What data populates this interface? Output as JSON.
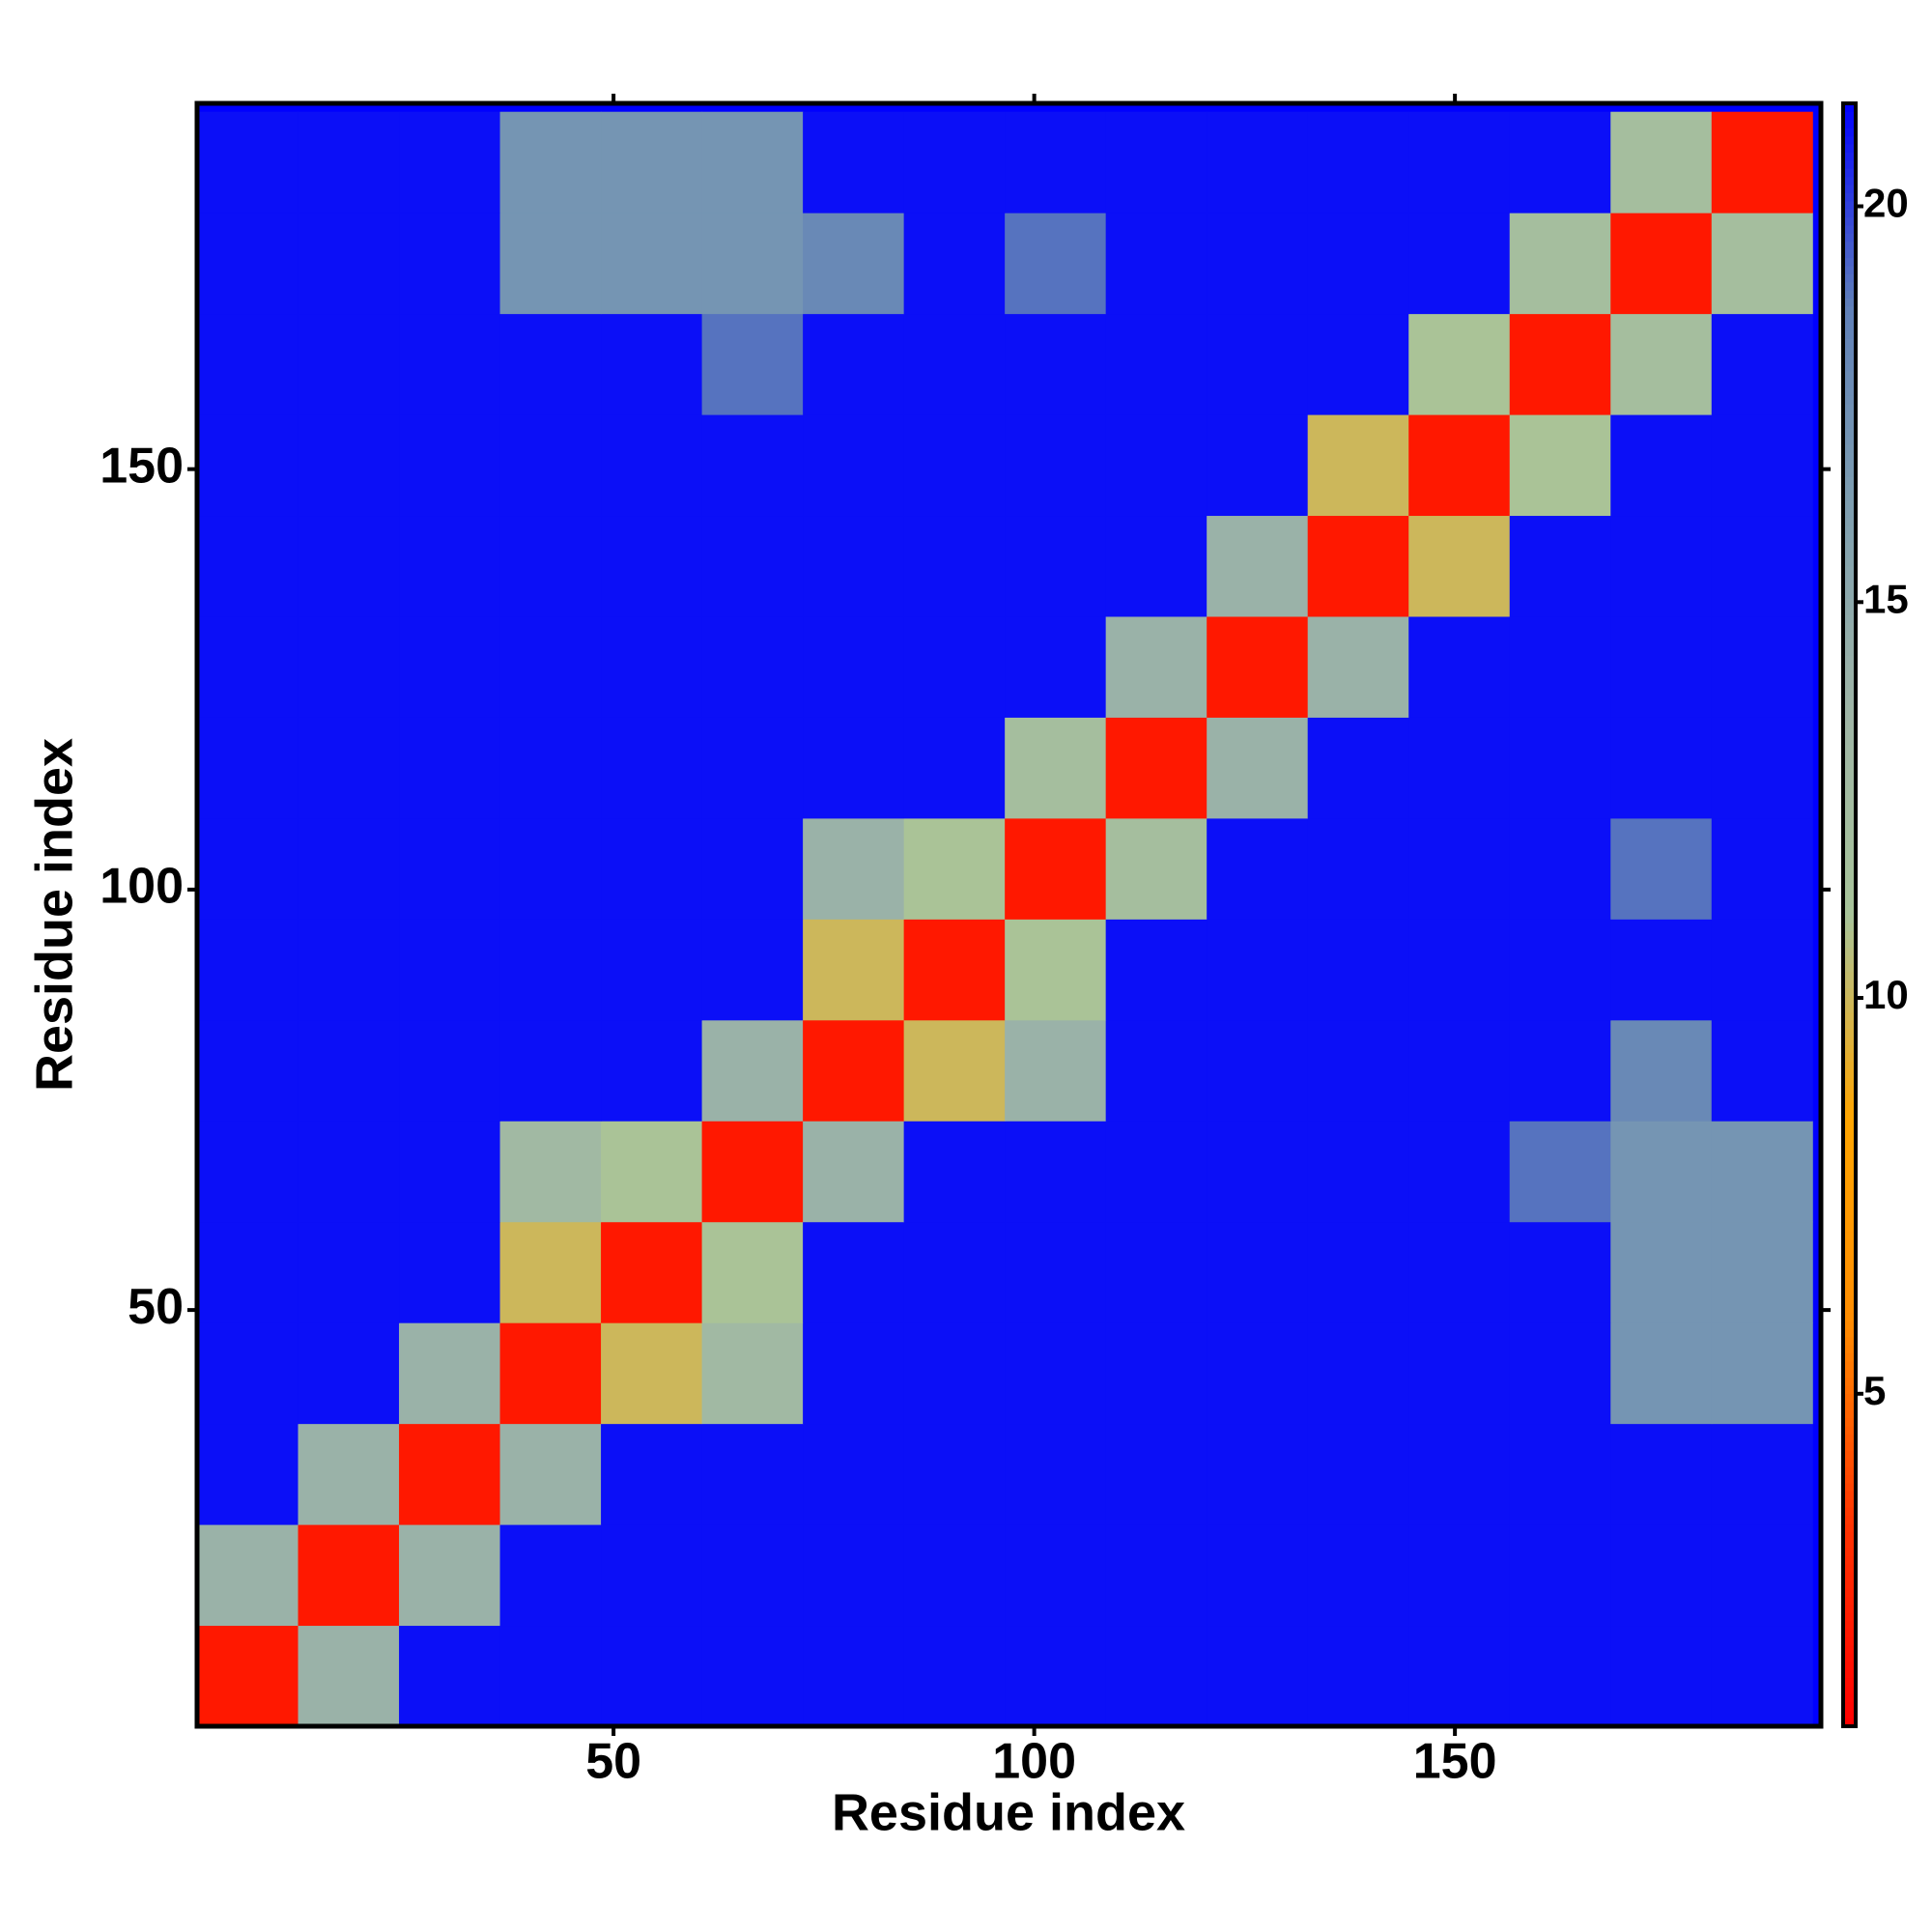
{
  "chart_data": {
    "type": "heatmap",
    "xlabel": "Residue index",
    "ylabel": "Residue index",
    "xbins": [
      0.5,
      12.5,
      24.5,
      36.5,
      48.5,
      60.5,
      72.5,
      84.5,
      96.5,
      108.5,
      120.5,
      132.5,
      144.5,
      156.5,
      168.5,
      180.5,
      192.5
    ],
    "ybins": [
      0.5,
      12.5,
      24.5,
      36.5,
      48.5,
      60.5,
      72.5,
      84.5,
      96.5,
      108.5,
      120.5,
      132.5,
      144.5,
      156.5,
      168.5,
      180.5,
      192.5
    ],
    "z": [
      [
        2,
        14,
        21,
        21,
        21,
        21,
        21,
        21,
        21,
        21,
        21,
        21,
        21,
        21,
        21,
        21
      ],
      [
        14,
        2,
        14,
        21,
        21,
        21,
        21,
        21,
        21,
        21,
        21,
        21,
        21,
        21,
        21,
        21
      ],
      [
        21,
        14,
        2,
        14,
        21,
        21,
        21,
        21,
        21,
        21,
        21,
        21,
        21,
        21,
        21,
        21
      ],
      [
        21,
        21,
        14,
        2,
        10,
        13,
        21,
        21,
        21,
        21,
        21,
        21,
        21,
        21,
        17,
        17
      ],
      [
        21,
        21,
        21,
        10,
        2,
        11,
        21,
        21,
        21,
        21,
        21,
        21,
        21,
        21,
        17,
        17
      ],
      [
        21,
        21,
        21,
        13,
        11,
        2,
        14,
        21,
        21,
        21,
        21,
        21,
        21,
        19,
        17,
        17
      ],
      [
        21,
        21,
        21,
        21,
        21,
        14,
        2,
        10,
        14,
        21,
        21,
        21,
        21,
        21,
        18,
        21
      ],
      [
        21,
        21,
        21,
        21,
        21,
        21,
        10,
        2,
        11,
        21,
        21,
        21,
        21,
        21,
        21,
        21
      ],
      [
        21,
        21,
        21,
        21,
        21,
        21,
        14,
        11,
        2,
        12,
        21,
        21,
        21,
        21,
        19,
        21
      ],
      [
        21,
        21,
        21,
        21,
        21,
        21,
        21,
        21,
        12,
        2,
        14,
        21,
        21,
        21,
        21,
        21
      ],
      [
        21,
        21,
        21,
        21,
        21,
        21,
        21,
        21,
        21,
        14,
        2,
        14,
        21,
        21,
        21,
        21
      ],
      [
        21,
        21,
        21,
        21,
        21,
        21,
        21,
        21,
        21,
        21,
        14,
        2,
        10,
        21,
        21,
        21
      ],
      [
        21,
        21,
        21,
        21,
        21,
        21,
        21,
        21,
        21,
        21,
        21,
        10,
        2,
        11,
        21,
        21
      ],
      [
        21,
        21,
        21,
        21,
        21,
        19,
        21,
        21,
        21,
        21,
        21,
        21,
        11,
        2,
        12,
        21
      ],
      [
        21,
        21,
        21,
        17,
        17,
        17,
        18,
        21,
        19,
        21,
        21,
        21,
        21,
        12,
        2,
        12
      ],
      [
        21,
        21,
        21,
        17,
        17,
        17,
        21,
        21,
        21,
        21,
        21,
        21,
        21,
        21,
        12,
        2
      ]
    ],
    "xlim": [
      0.5,
      193.5
    ],
    "ylim": [
      0.5,
      193.5
    ],
    "xticks": [
      50,
      100,
      150
    ],
    "yticks": [
      50,
      100,
      150
    ],
    "zlim": [
      0.8,
      21.3
    ],
    "zticks": [
      5,
      10,
      15,
      20
    ],
    "colors": [
      "#ff0000",
      "#ff3300",
      "#ff8c00",
      "#ffa500",
      "#a8c49a",
      "#9fb5a6",
      "#7f9fb0",
      "#6080b8",
      "#0000ff"
    ]
  }
}
